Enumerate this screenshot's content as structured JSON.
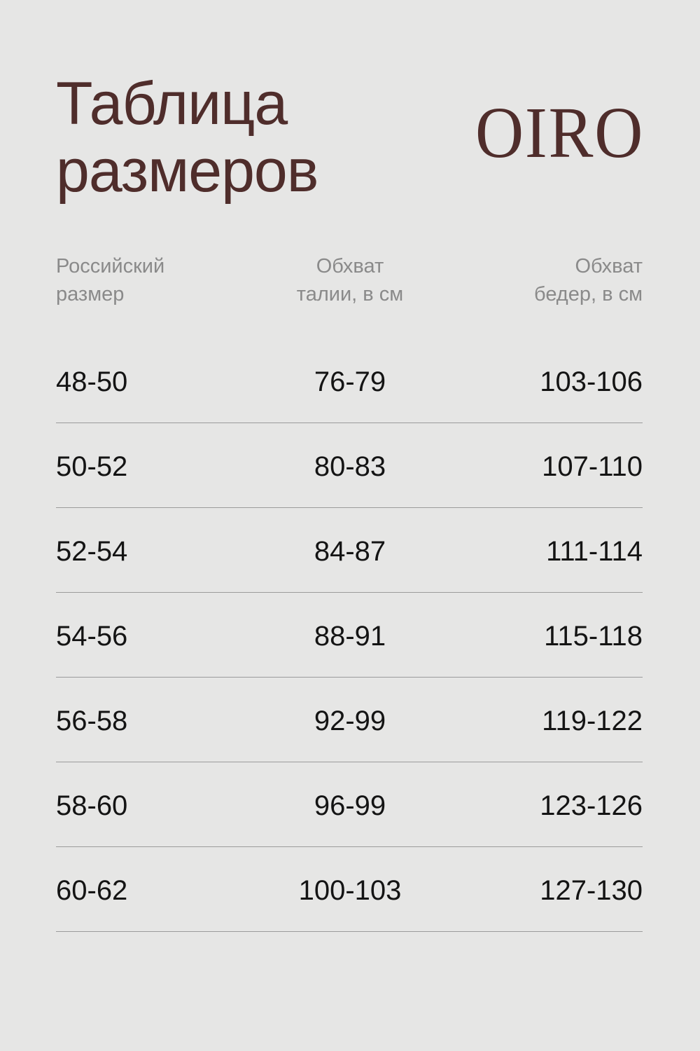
{
  "title": [
    "Таблица",
    "размеров"
  ],
  "logo": "OIRO",
  "colors": {
    "accent": "#4f2d2b",
    "background": "#e6e6e5",
    "header_text": "#8a8a8a",
    "divider": "#9b9b9b"
  },
  "headers": [
    {
      "line1": "Российский",
      "line2": "размер"
    },
    {
      "line1": "Обхват",
      "line2": "талии, в см"
    },
    {
      "line1": "Обхват",
      "line2": "бедер, в см"
    }
  ],
  "rows": [
    [
      "48-50",
      "76-79",
      "103-106"
    ],
    [
      "50-52",
      "80-83",
      "107-110"
    ],
    [
      "52-54",
      "84-87",
      "111-114"
    ],
    [
      "54-56",
      "88-91",
      "115-118"
    ],
    [
      "56-58",
      "92-99",
      "119-122"
    ],
    [
      "58-60",
      "96-99",
      "123-126"
    ],
    [
      "60-62",
      "100-103",
      "127-130"
    ]
  ]
}
